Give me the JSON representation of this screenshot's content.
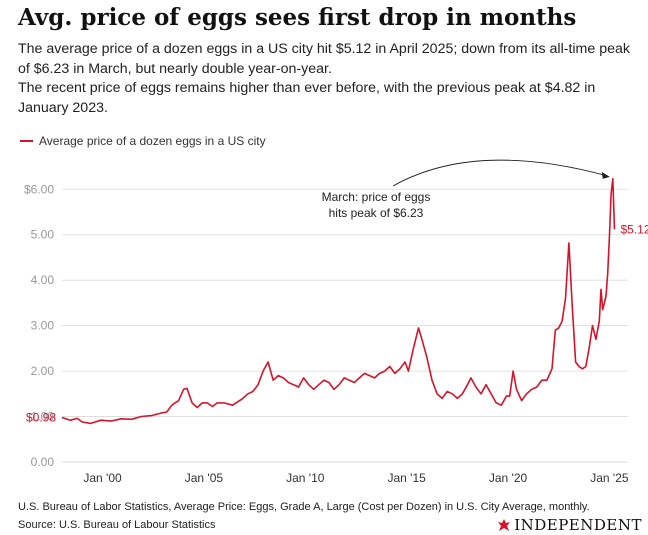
{
  "header": {
    "title": "Avg. price of eggs sees first drop in months",
    "subtitle_1": "The average price of a dozen eggs in a US city hit $5.12 in April 2025; down from its all-time peak of $6.23 in March, but nearly double year-on-year.",
    "subtitle_2": "The recent price of eggs remains higher than ever before, with the previous peak at $4.82 in January 2023."
  },
  "footer": {
    "footnote": "U.S. Bureau of Labor Statistics, Average Price: Eggs, Grade A, Large (Cost per Dozen) in U.S. City Average, monthly.",
    "source": "Source: U.S. Bureau of Labour Statistics",
    "brand": "INDEPENDENT",
    "brand_icon": "eagle-icon"
  },
  "colors": {
    "series": "#d5142b",
    "grid": "#d9d9d9",
    "axis_text": "#999999"
  },
  "chart_data": {
    "type": "line",
    "title": "",
    "xlabel": "",
    "ylabel": "",
    "ylim": [
      0,
      6.6
    ],
    "xlim": [
      "1998-01",
      "2025-12"
    ],
    "grid": true,
    "y_ticks": [
      0,
      1,
      2,
      3,
      4,
      5,
      6
    ],
    "y_tick_labels": [
      "0.00",
      "1.00",
      "2.00",
      "3.00",
      "4.00",
      "5.00",
      "$6.00"
    ],
    "x_ticks": [
      "2000-01",
      "2005-01",
      "2010-01",
      "2015-01",
      "2020-01",
      "2025-01"
    ],
    "x_tick_labels": [
      "Jan '00",
      "Jan '05",
      "Jan '10",
      "Jan '15",
      "Jan '20",
      "Jan '25"
    ],
    "legend": {
      "position": "top-left"
    },
    "annotations": [
      {
        "text_1": "March: price of eggs",
        "text_2": "hits peak of $6.23",
        "x": "2025-03",
        "y": 6.23
      }
    ],
    "data_labels": {
      "start": "$0.98",
      "end": "$5.12"
    },
    "series": [
      {
        "name": "Average price of a dozen eggs in a US city",
        "points": [
          [
            "1998-01",
            0.98
          ],
          [
            "1998-06",
            0.92
          ],
          [
            "1998-10",
            0.96
          ],
          [
            "1999-01",
            0.88
          ],
          [
            "1999-06",
            0.85
          ],
          [
            "1999-12",
            0.92
          ],
          [
            "2000-06",
            0.9
          ],
          [
            "2000-12",
            0.95
          ],
          [
            "2001-06",
            0.94
          ],
          [
            "2001-12",
            1.0
          ],
          [
            "2002-06",
            1.02
          ],
          [
            "2002-12",
            1.08
          ],
          [
            "2003-03",
            1.1
          ],
          [
            "2003-06",
            1.25
          ],
          [
            "2003-10",
            1.35
          ],
          [
            "2004-01",
            1.6
          ],
          [
            "2004-03",
            1.62
          ],
          [
            "2004-06",
            1.3
          ],
          [
            "2004-09",
            1.2
          ],
          [
            "2004-12",
            1.3
          ],
          [
            "2005-03",
            1.3
          ],
          [
            "2005-06",
            1.22
          ],
          [
            "2005-09",
            1.3
          ],
          [
            "2006-01",
            1.3
          ],
          [
            "2006-06",
            1.25
          ],
          [
            "2006-12",
            1.4
          ],
          [
            "2007-03",
            1.5
          ],
          [
            "2007-06",
            1.55
          ],
          [
            "2007-09",
            1.7
          ],
          [
            "2007-12",
            2.0
          ],
          [
            "2008-03",
            2.2
          ],
          [
            "2008-06",
            1.8
          ],
          [
            "2008-09",
            1.9
          ],
          [
            "2008-12",
            1.85
          ],
          [
            "2009-03",
            1.75
          ],
          [
            "2009-06",
            1.7
          ],
          [
            "2009-09",
            1.65
          ],
          [
            "2009-12",
            1.85
          ],
          [
            "2010-03",
            1.7
          ],
          [
            "2010-06",
            1.6
          ],
          [
            "2010-09",
            1.7
          ],
          [
            "2010-12",
            1.8
          ],
          [
            "2011-03",
            1.75
          ],
          [
            "2011-06",
            1.6
          ],
          [
            "2011-09",
            1.7
          ],
          [
            "2011-12",
            1.85
          ],
          [
            "2012-03",
            1.8
          ],
          [
            "2012-06",
            1.75
          ],
          [
            "2012-09",
            1.85
          ],
          [
            "2012-12",
            1.95
          ],
          [
            "2013-03",
            1.9
          ],
          [
            "2013-06",
            1.85
          ],
          [
            "2013-09",
            1.95
          ],
          [
            "2013-12",
            2.0
          ],
          [
            "2014-03",
            2.1
          ],
          [
            "2014-06",
            1.95
          ],
          [
            "2014-09",
            2.05
          ],
          [
            "2014-12",
            2.2
          ],
          [
            "2015-02",
            2.0
          ],
          [
            "2015-05",
            2.5
          ],
          [
            "2015-08",
            2.95
          ],
          [
            "2015-10",
            2.7
          ],
          [
            "2016-01",
            2.3
          ],
          [
            "2016-04",
            1.8
          ],
          [
            "2016-07",
            1.5
          ],
          [
            "2016-10",
            1.4
          ],
          [
            "2017-01",
            1.55
          ],
          [
            "2017-04",
            1.5
          ],
          [
            "2017-07",
            1.4
          ],
          [
            "2017-10",
            1.5
          ],
          [
            "2018-01",
            1.7
          ],
          [
            "2018-03",
            1.85
          ],
          [
            "2018-06",
            1.65
          ],
          [
            "2018-09",
            1.5
          ],
          [
            "2018-12",
            1.7
          ],
          [
            "2019-03",
            1.5
          ],
          [
            "2019-06",
            1.3
          ],
          [
            "2019-09",
            1.25
          ],
          [
            "2019-12",
            1.45
          ],
          [
            "2020-02",
            1.45
          ],
          [
            "2020-04",
            2.0
          ],
          [
            "2020-06",
            1.6
          ],
          [
            "2020-09",
            1.35
          ],
          [
            "2020-12",
            1.5
          ],
          [
            "2021-03",
            1.6
          ],
          [
            "2021-06",
            1.65
          ],
          [
            "2021-09",
            1.8
          ],
          [
            "2021-12",
            1.8
          ],
          [
            "2022-03",
            2.05
          ],
          [
            "2022-05",
            2.9
          ],
          [
            "2022-07",
            2.95
          ],
          [
            "2022-09",
            3.1
          ],
          [
            "2022-11",
            3.6
          ],
          [
            "2023-01",
            4.82
          ],
          [
            "2023-03",
            3.45
          ],
          [
            "2023-05",
            2.2
          ],
          [
            "2023-07",
            2.1
          ],
          [
            "2023-09",
            2.05
          ],
          [
            "2023-11",
            2.1
          ],
          [
            "2024-01",
            2.5
          ],
          [
            "2024-03",
            3.0
          ],
          [
            "2024-05",
            2.7
          ],
          [
            "2024-07",
            3.1
          ],
          [
            "2024-08",
            3.8
          ],
          [
            "2024-09",
            3.35
          ],
          [
            "2024-11",
            3.65
          ],
          [
            "2024-12",
            4.15
          ],
          [
            "2025-01",
            4.95
          ],
          [
            "2025-02",
            5.9
          ],
          [
            "2025-03",
            6.23
          ],
          [
            "2025-04",
            5.12
          ]
        ]
      }
    ]
  }
}
